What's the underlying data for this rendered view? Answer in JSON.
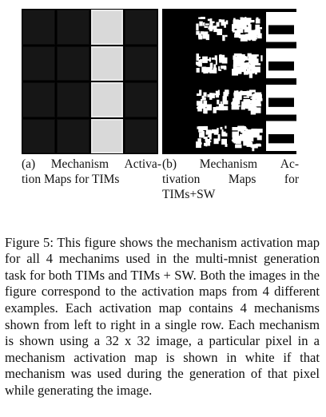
{
  "figure": {
    "panels": [
      {
        "id": "a",
        "caption_lines": [
          [
            "(a)",
            "Mechanism",
            "Activa-"
          ],
          [
            "tion Maps for TIMs"
          ]
        ],
        "rows": 4,
        "mechanisms": 4,
        "active_mechanism": 2
      },
      {
        "id": "b",
        "caption_lines": [
          [
            "(b)",
            "Mechanism",
            "Ac-"
          ],
          [
            "tivation",
            "Maps",
            "for"
          ],
          [
            "TIMs+SW"
          ]
        ],
        "rows": 4,
        "mechanisms": 4
      }
    ],
    "caption_text": "Figure 5: This figure shows the mechanism activation map for all 4 mechanims used in the multi-mnist generation task for both TIMs and TIMs + SW. Both the images in the figure correspond to the activation maps from 4 different examples. Each activation map contains 4 mechanisms shown from left to right in a single row. Each mechanism is shown using a 32 x 32 image, a particular pixel in a mechanism activation map is shown in white if that mechanism was used during the generation of that pixel while generating the image."
  }
}
